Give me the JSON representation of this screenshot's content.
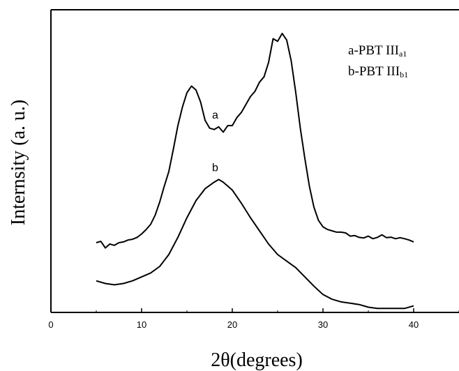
{
  "chart_data": {
    "type": "line",
    "title": "",
    "xlabel": "2θ(degrees)",
    "ylabel": "Internsity (a. u.)",
    "xlim": [
      0,
      45
    ],
    "xticks": [
      "0",
      "10",
      "20",
      "30",
      "40"
    ],
    "y_tick_labels_shown": false,
    "legend": {
      "placement": "top-right",
      "entries": [
        {
          "prefix": "a-PBT III",
          "sub": "a1"
        },
        {
          "prefix": "b-PBT III",
          "sub": "b1"
        }
      ]
    },
    "series": [
      {
        "name": "a",
        "x": [
          5,
          5.5,
          6,
          6.5,
          7,
          7.5,
          8,
          8.5,
          9,
          9.5,
          10,
          10.5,
          11,
          11.5,
          12,
          12.5,
          13,
          13.5,
          14,
          14.5,
          15,
          15.5,
          16,
          16.5,
          17,
          17.5,
          18,
          18.5,
          19,
          19.5,
          20,
          20.5,
          21,
          21.5,
          22,
          22.5,
          23,
          23.5,
          24,
          24.5,
          25,
          25.5,
          26,
          26.5,
          27,
          27.5,
          28,
          28.5,
          29,
          29.5,
          30,
          30.5,
          31,
          31.5,
          32,
          32.5,
          33,
          33.5,
          34,
          34.5,
          35,
          35.5,
          36,
          36.5,
          37,
          37.5,
          38,
          38.5,
          39,
          39.5,
          40
        ],
        "y": [
          26.5,
          27.0,
          24.5,
          26.0,
          25.5,
          26.5,
          26.8,
          27.5,
          27.8,
          28.5,
          29.8,
          31.5,
          33.5,
          37.0,
          42.0,
          48.0,
          53.5,
          62.0,
          71.0,
          78.0,
          83.5,
          86.0,
          84.5,
          80.0,
          73.0,
          70.0,
          69.5,
          70.5,
          68.5,
          71.0,
          71.0,
          74.0,
          76.0,
          79.0,
          82.0,
          84.0,
          87.5,
          89.5,
          95.0,
          104.0,
          103.0,
          106.0,
          103.5,
          95.5,
          83.5,
          70.0,
          58.5,
          48.0,
          40.0,
          35.0,
          32.5,
          31.5,
          31.0,
          30.5,
          30.5,
          30.2,
          29.0,
          29.2,
          28.5,
          28.3,
          29.0,
          28.0,
          28.5,
          29.5,
          28.4,
          28.6,
          28.0,
          28.4,
          28.0,
          27.5,
          26.8
        ]
      },
      {
        "name": "b",
        "x": [
          5,
          6,
          7,
          8,
          9,
          10,
          11,
          12,
          13,
          14,
          15,
          16,
          17,
          18,
          18.5,
          19,
          20,
          21,
          22,
          23,
          24,
          25,
          26,
          27,
          28,
          29,
          30,
          31,
          32,
          33,
          34,
          35,
          36,
          37,
          38,
          39,
          40
        ],
        "y": [
          12.0,
          11.0,
          10.5,
          11.0,
          12.0,
          13.5,
          15.0,
          17.5,
          22.0,
          28.5,
          36.0,
          42.5,
          47.0,
          49.5,
          50.5,
          49.5,
          46.5,
          41.5,
          36.0,
          31.0,
          26.0,
          22.0,
          19.5,
          17.0,
          13.5,
          10.0,
          6.8,
          5.0,
          4.0,
          3.5,
          3.0,
          2.0,
          1.5,
          1.5,
          1.5,
          1.5,
          2.5
        ]
      }
    ],
    "curve_labels": [
      {
        "text": "a",
        "x": 19,
        "y": 75
      },
      {
        "text": "b",
        "x": 19,
        "y": 55
      }
    ]
  }
}
